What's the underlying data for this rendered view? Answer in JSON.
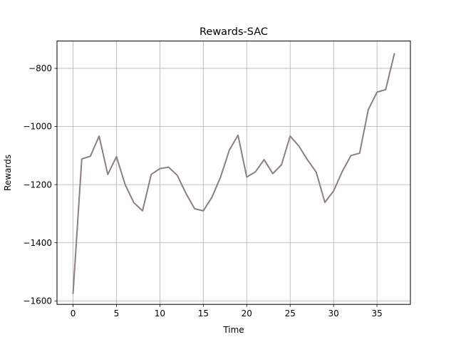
{
  "chart_data": {
    "type": "line",
    "title": "Rewards-SAC",
    "xlabel": "Time",
    "ylabel": "Rewards",
    "xlim": [
      -1.85,
      38.85
    ],
    "ylim": [
      -1612,
      -706
    ],
    "xticks": [
      0,
      5,
      10,
      15,
      20,
      25,
      30,
      35
    ],
    "xtick_labels": [
      "0",
      "5",
      "10",
      "15",
      "20",
      "25",
      "30",
      "35"
    ],
    "yticks": [
      -1600,
      -1400,
      -1200,
      -1000,
      -800
    ],
    "ytick_labels": [
      "−1600",
      "−1400",
      "−1200",
      "−1000",
      "−800"
    ],
    "grid": true,
    "legend": "none",
    "line_color": "#8c7f84",
    "series": [
      {
        "x": [
          0,
          1,
          2,
          3,
          4,
          5,
          6,
          7,
          8,
          9,
          10,
          11,
          12,
          13,
          14,
          15,
          16,
          17,
          18,
          19,
          20,
          21,
          22,
          23,
          24,
          25,
          26,
          27,
          28,
          29,
          30,
          31,
          32,
          33,
          34,
          35,
          36,
          37
        ],
        "values": [
          -1573,
          -1112,
          -1102,
          -1033,
          -1165,
          -1104,
          -1200,
          -1262,
          -1290,
          -1165,
          -1145,
          -1140,
          -1168,
          -1230,
          -1283,
          -1290,
          -1243,
          -1173,
          -1081,
          -1030,
          -1174,
          -1156,
          -1114,
          -1162,
          -1132,
          -1033,
          -1067,
          -1115,
          -1157,
          -1261,
          -1222,
          -1155,
          -1100,
          -1092,
          -942,
          -882,
          -873,
          -750
        ]
      }
    ]
  }
}
